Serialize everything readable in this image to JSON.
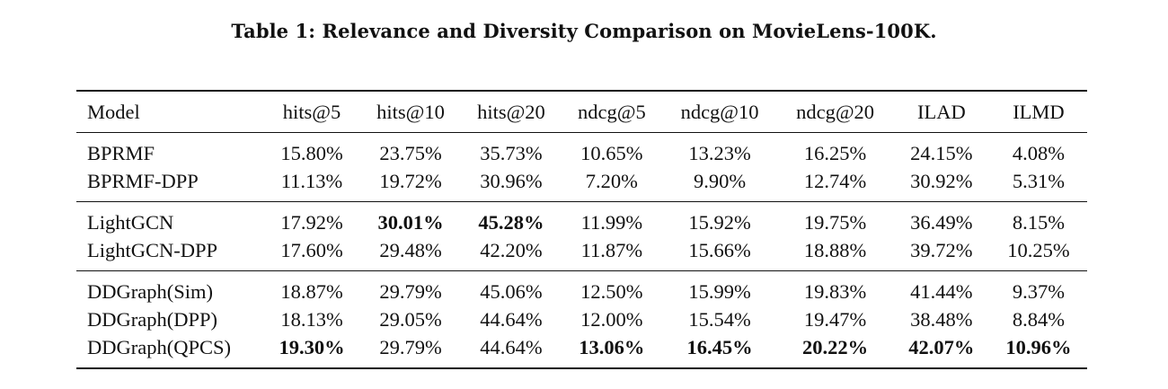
{
  "caption": "Table 1: Relevance and Diversity Comparison on MovieLens-100K.",
  "table": {
    "headers": [
      "Model",
      "hits@5",
      "hits@10",
      "hits@20",
      "ndcg@5",
      "ndcg@10",
      "ndcg@20",
      "ILAD",
      "ILMD"
    ],
    "groups": [
      {
        "rows": [
          {
            "model": "BPRMF",
            "cells": [
              "15.80%",
              "23.75%",
              "35.73%",
              "10.65%",
              "13.23%",
              "16.25%",
              "24.15%",
              "4.08%"
            ],
            "bold": [
              false,
              false,
              false,
              false,
              false,
              false,
              false,
              false
            ]
          },
          {
            "model": "BPRMF-DPP",
            "cells": [
              "11.13%",
              "19.72%",
              "30.96%",
              "7.20%",
              "9.90%",
              "12.74%",
              "30.92%",
              "5.31%"
            ],
            "bold": [
              false,
              false,
              false,
              false,
              false,
              false,
              false,
              false
            ]
          }
        ]
      },
      {
        "rows": [
          {
            "model": "LightGCN",
            "cells": [
              "17.92%",
              "30.01%",
              "45.28%",
              "11.99%",
              "15.92%",
              "19.75%",
              "36.49%",
              "8.15%"
            ],
            "bold": [
              false,
              true,
              true,
              false,
              false,
              false,
              false,
              false
            ]
          },
          {
            "model": "LightGCN-DPP",
            "cells": [
              "17.60%",
              "29.48%",
              "42.20%",
              "11.87%",
              "15.66%",
              "18.88%",
              "39.72%",
              "10.25%"
            ],
            "bold": [
              false,
              false,
              false,
              false,
              false,
              false,
              false,
              false
            ]
          }
        ]
      },
      {
        "rows": [
          {
            "model": "DDGraph(Sim)",
            "cells": [
              "18.87%",
              "29.79%",
              "45.06%",
              "12.50%",
              "15.99%",
              "19.83%",
              "41.44%",
              "9.37%"
            ],
            "bold": [
              false,
              false,
              false,
              false,
              false,
              false,
              false,
              false
            ]
          },
          {
            "model": "DDGraph(DPP)",
            "cells": [
              "18.13%",
              "29.05%",
              "44.64%",
              "12.00%",
              "15.54%",
              "19.47%",
              "38.48%",
              "8.84%"
            ],
            "bold": [
              false,
              false,
              false,
              false,
              false,
              false,
              false,
              false
            ]
          },
          {
            "model": "DDGraph(QPCS)",
            "cells": [
              "19.30%",
              "29.79%",
              "44.64%",
              "13.06%",
              "16.45%",
              "20.22%",
              "42.07%",
              "10.96%"
            ],
            "bold": [
              true,
              false,
              false,
              true,
              true,
              true,
              true,
              true
            ]
          }
        ]
      }
    ]
  }
}
